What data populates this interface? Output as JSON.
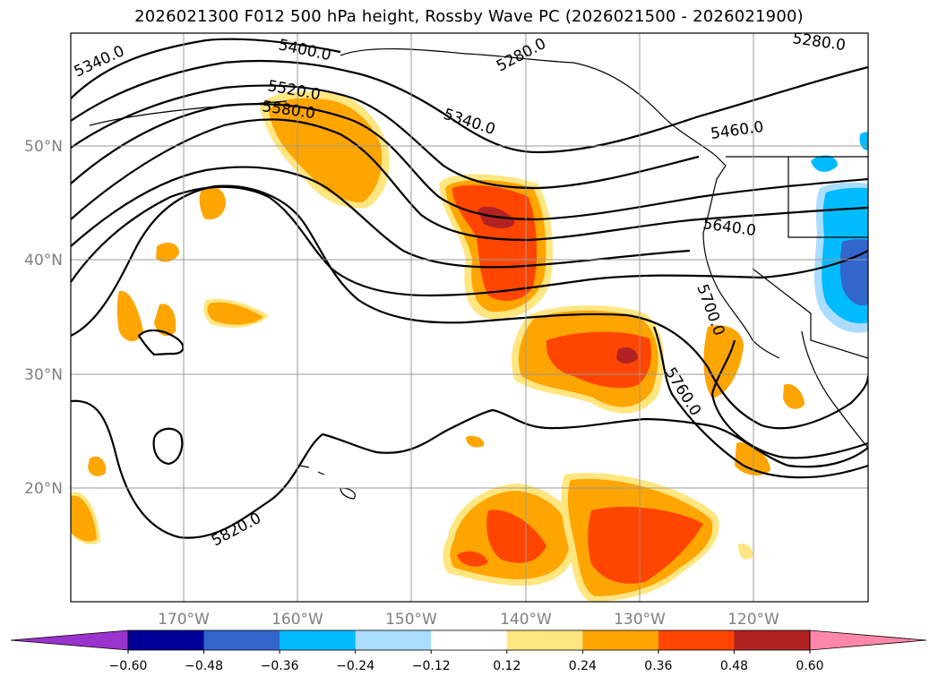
{
  "title": "2026021300 F012 500 hPa height, Rossby Wave PC (2026021500 - 2026021900)",
  "lon_labels": [
    "170°W",
    "160°W",
    "150°W",
    "140°W",
    "130°W",
    "120°W"
  ],
  "lat_labels": [
    "50°N",
    "40°N",
    "30°N",
    "20°N"
  ],
  "contour_labels": [
    "5340.0",
    "5400.0",
    "5280.0",
    "5280.0",
    "5520.0",
    "5580.0",
    "5340.0",
    "5460.0",
    "5640.0",
    "5700.0",
    "5760.0",
    "5820.0"
  ],
  "colorbar": {
    "ticks": [
      "−0.60",
      "−0.48",
      "−0.36",
      "−0.24",
      "−0.12",
      "0.12",
      "0.24",
      "0.36",
      "0.48",
      "0.60"
    ],
    "colors": [
      "#9933cc",
      "#000099",
      "#3366cc",
      "#00bbff",
      "#aaddff",
      "#ffffff",
      "#ffe680",
      "#ffa500",
      "#ff4500",
      "#b22222",
      "#ff88aa"
    ]
  },
  "colors": {
    "pos1": "#ffe680",
    "pos2": "#ffa500",
    "pos3": "#ff4500",
    "pos4": "#b22222",
    "neg1": "#aaddff",
    "neg2": "#00bbff",
    "neg3": "#3366cc"
  }
}
